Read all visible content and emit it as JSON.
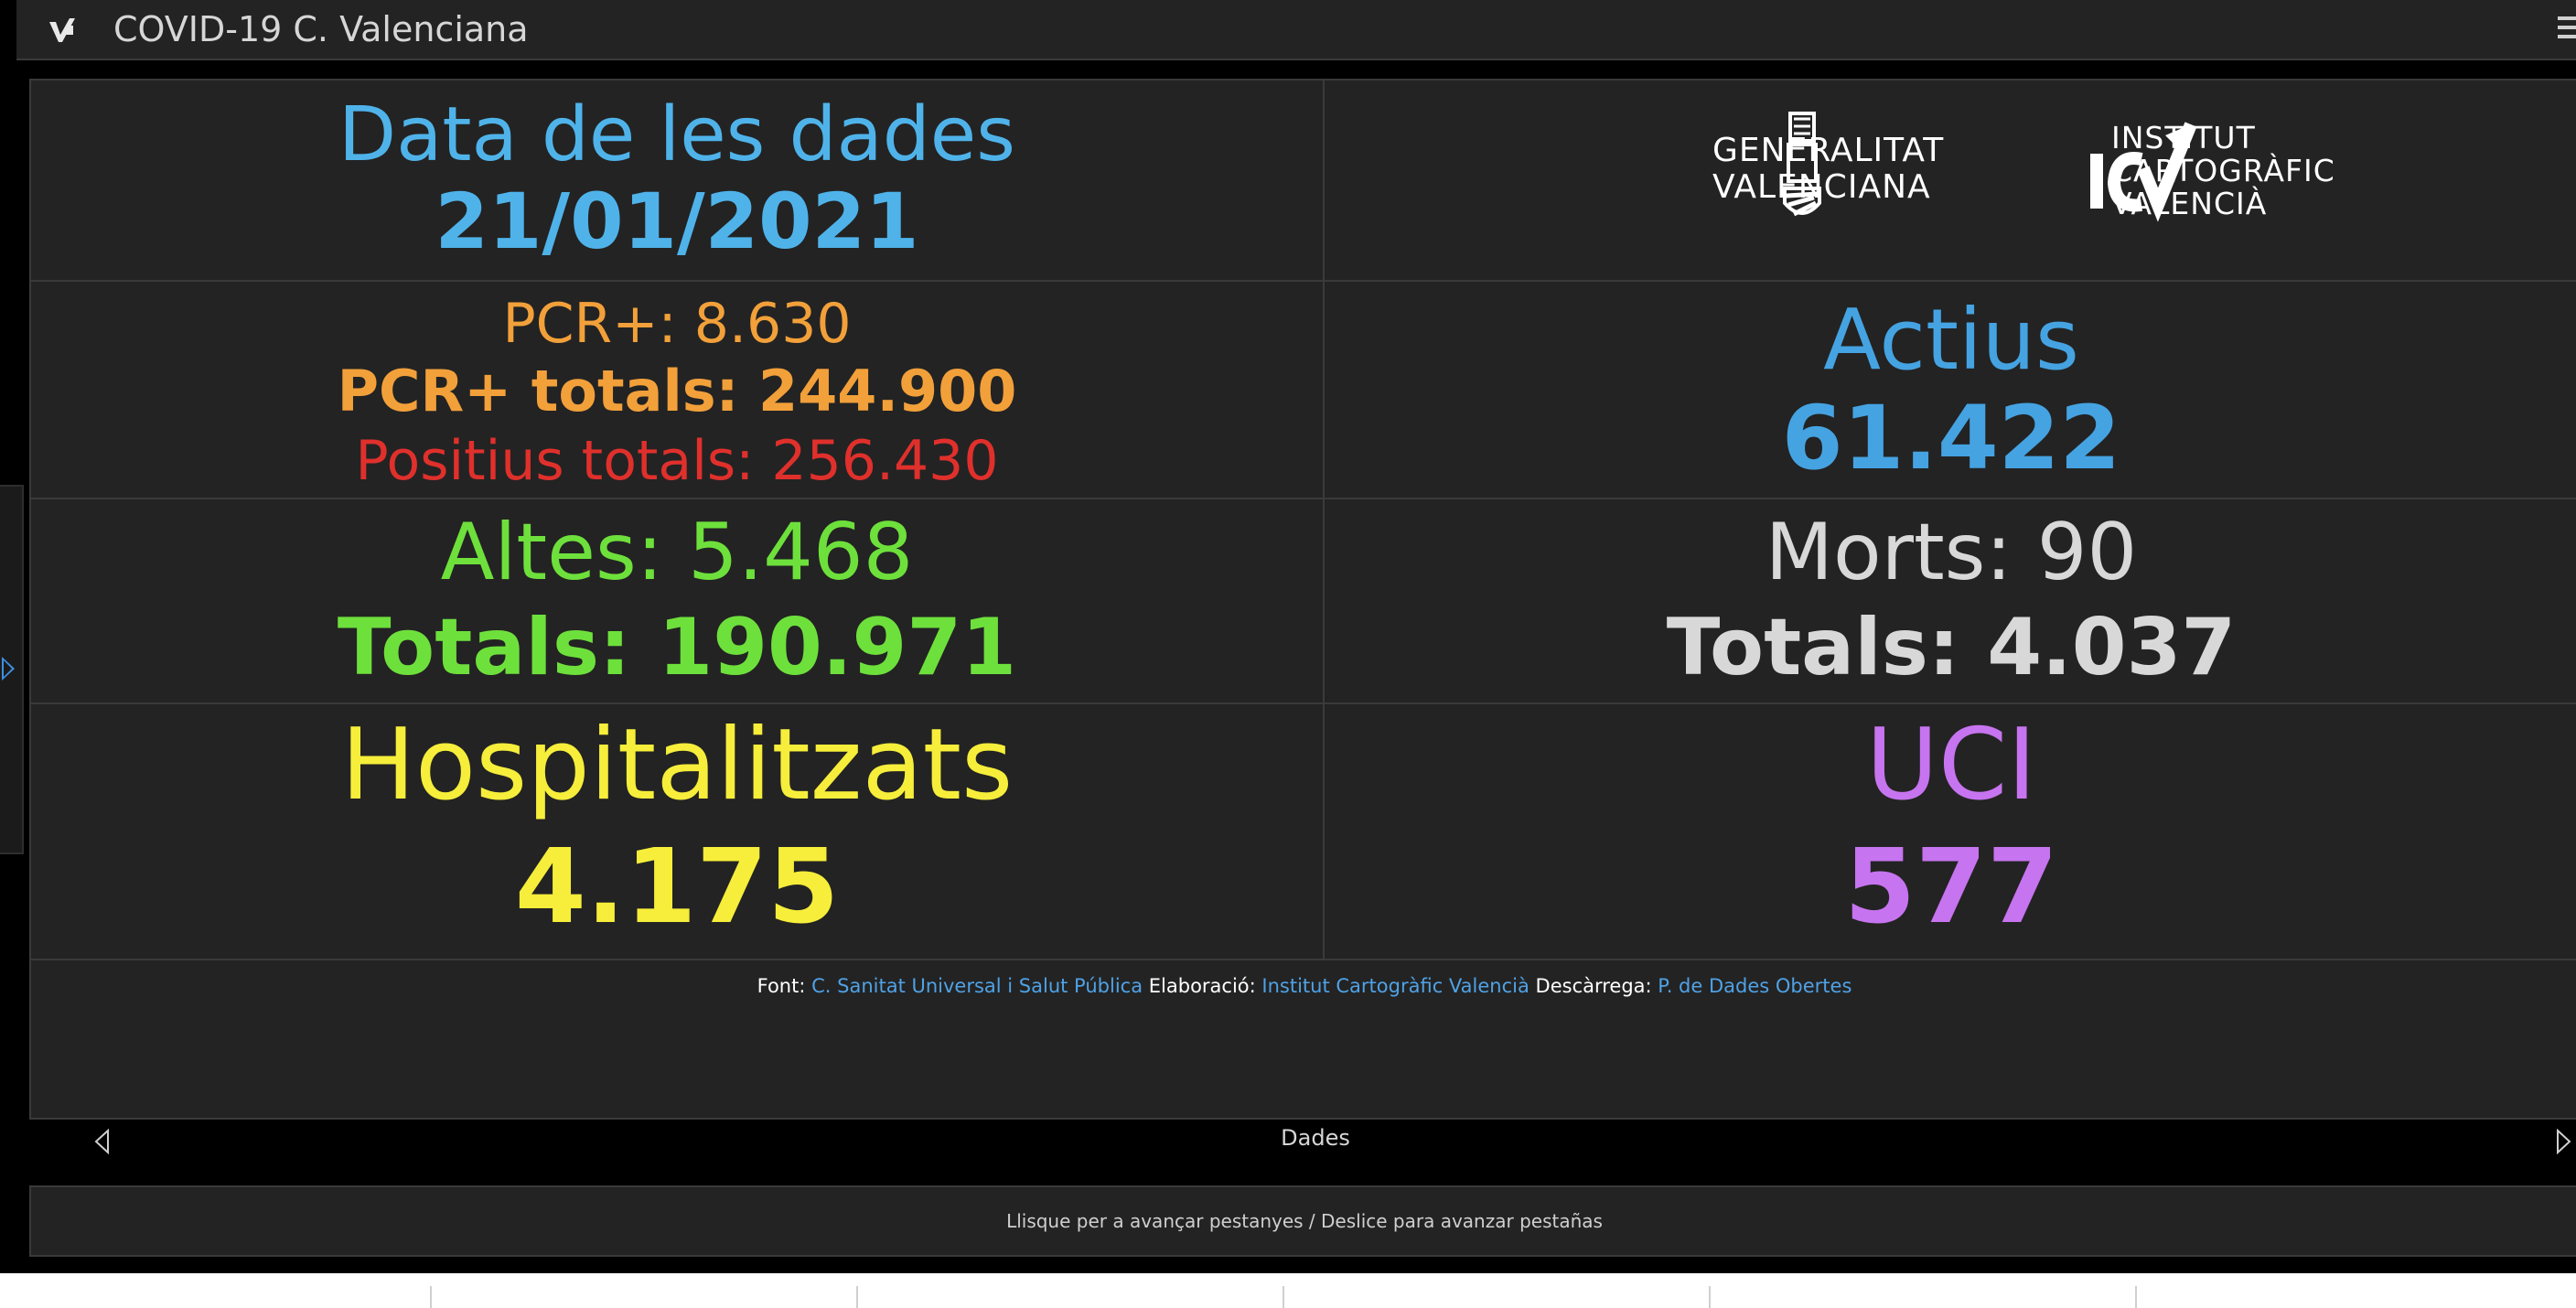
{
  "header": {
    "title": "COVID-19 C. Valenciana"
  },
  "data_date": {
    "label": "Data de les dades",
    "value": "21/01/2021"
  },
  "logos": {
    "gv_line1": "GENERALITAT",
    "gv_line2": "VALENCIANA",
    "icv_line1": "INSTITUT",
    "icv_line2": "CARTOGRÀFIC",
    "icv_line3": "VALENCIÀ"
  },
  "pcr": {
    "daily": "PCR+: 8.630",
    "total": "PCR+ totals: 244.900",
    "positives_total": "Positius totals: 256.430"
  },
  "actius": {
    "label": "Actius",
    "value": "61.422"
  },
  "altes": {
    "daily": "Altes: 5.468",
    "total": "Totals: 190.971"
  },
  "morts": {
    "daily": "Morts: 90",
    "total": "Totals: 4.037"
  },
  "hospitalitzats": {
    "label": "Hospitalitzats",
    "value": "4.175"
  },
  "uci": {
    "label": "UCI",
    "value": "577"
  },
  "credits": {
    "font_label": "Font:",
    "font_link": "C. Sanitat Universal i Salut Pública",
    "elab_label": "Elaboració:",
    "elab_link": "Institut Cartogràfic Valencià",
    "desc_label": "Descàrrega:",
    "desc_link": "P. de Dades Obertes"
  },
  "tabbar": {
    "current_tab": "Dades"
  },
  "hint": {
    "text": "Llisque per a avançar pestanyes / Deslice para avanzar pestañas"
  },
  "colors": {
    "blue": "#4fb3ea",
    "orange": "#f2a03a",
    "red": "#e0302c",
    "green": "#6ee03c",
    "gray": "#d8d8d8",
    "yellow": "#f6ee3a",
    "purple": "#c774f0"
  }
}
